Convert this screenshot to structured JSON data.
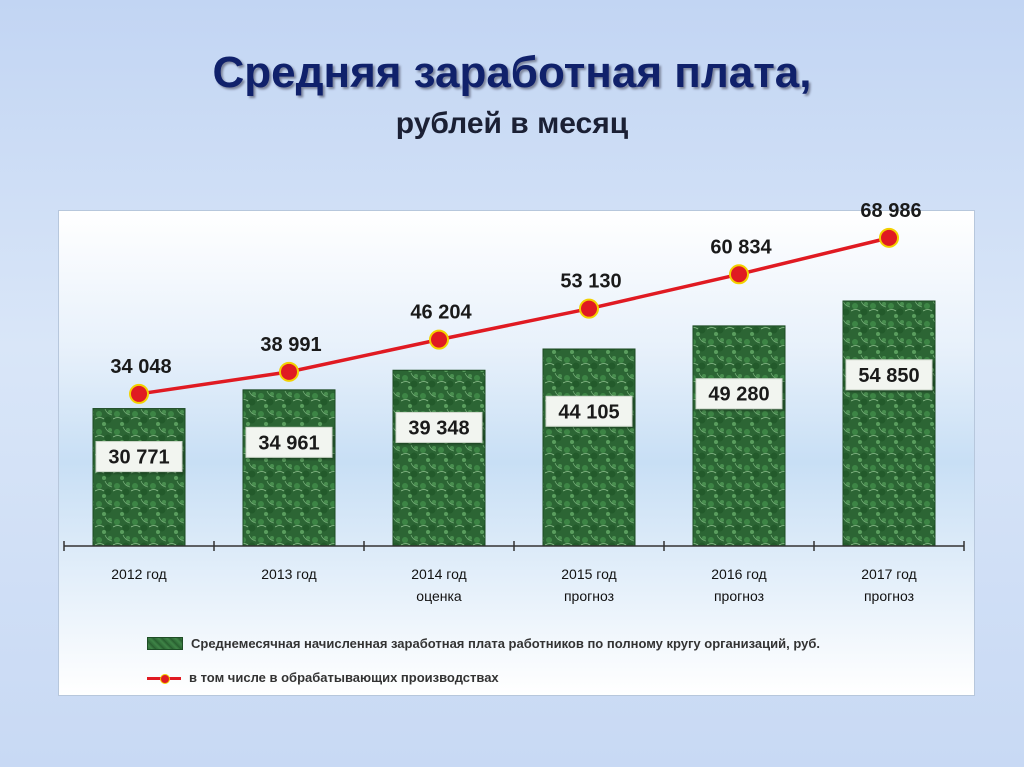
{
  "title": "Средняя заработная плата,",
  "subtitle": "рублей в месяц",
  "chart_data": {
    "type": "bar",
    "categories": [
      [
        "2012 год"
      ],
      [
        "2013 год"
      ],
      [
        "2014 год",
        "оценка"
      ],
      [
        "2015 год",
        "прогноз"
      ],
      [
        "2016 год",
        "прогноз"
      ],
      [
        "2017 год",
        "прогноз"
      ]
    ],
    "series": [
      {
        "name": "Среднемесячная начисленная заработная плата работников по полному кругу организаций, руб.",
        "type": "bar",
        "values": [
          30771,
          34961,
          39348,
          44105,
          49280,
          54850
        ],
        "labels": [
          "30 771",
          "34 961",
          "39 348",
          "44 105",
          "49 280",
          "54 850"
        ],
        "color": "#2f6b37"
      },
      {
        "name": "в том числе в обрабатывающих производствах",
        "type": "line",
        "values": [
          34048,
          38991,
          46204,
          53130,
          60834,
          68986
        ],
        "labels": [
          "34 048",
          "38 991",
          "46 204",
          "53 130",
          "60 834",
          "68 986"
        ],
        "color": "#e01a22"
      }
    ],
    "ylim": [
      0,
      75000
    ],
    "grid": false,
    "legend_position": "bottom"
  }
}
